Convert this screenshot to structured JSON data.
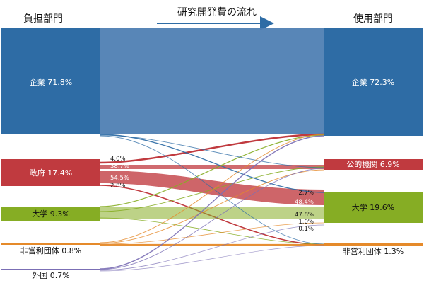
{
  "header": {
    "left_title": "負担部門",
    "center_title": "研究開発費の流れ",
    "right_title": "使用部門"
  },
  "colors": {
    "company": "#2e6ca5",
    "company_flow": "#4f7fb3",
    "government": "#c03a3f",
    "university": "#86ad24",
    "nonprofit": "#e58a2a",
    "foreign": "#7b6fb5"
  },
  "sources": [
    {
      "key": "company",
      "label": "企業 71.8%"
    },
    {
      "key": "government",
      "label": "政府 17.4%"
    },
    {
      "key": "university",
      "label": "大学 9.3%"
    },
    {
      "key": "nonprofit",
      "label": "非営利団体 0.8%"
    },
    {
      "key": "foreign",
      "label": "外国 0.7%"
    }
  ],
  "targets": [
    {
      "key": "company",
      "label": "企業 72.3%"
    },
    {
      "key": "public",
      "label": "公的機関 6.9%"
    },
    {
      "key": "university",
      "label": "大学 19.6%"
    },
    {
      "key": "nonprofit",
      "label": "非営利団体 1.3%"
    }
  ],
  "flow_labels": {
    "gov_to_company": "4.0%",
    "gov_to_public": "38.7%",
    "gov_to_university": "54.5%",
    "gov_to_nonprofit": "2.8%",
    "to_university_from_company": "2.7%",
    "to_university_from_government": "48.4%",
    "to_university_from_university": "47.8%",
    "to_university_from_nonprofit": "1.0%",
    "to_university_from_foreign": "0.1%"
  }
}
